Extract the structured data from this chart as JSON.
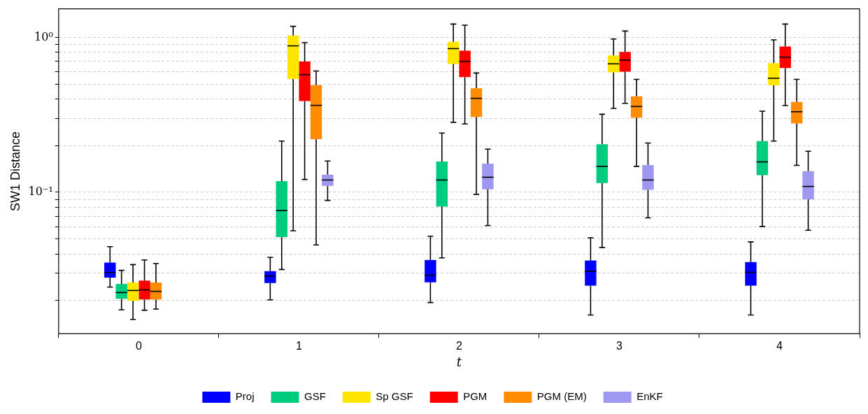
{
  "chart_data": {
    "type": "box",
    "xlabel": "t",
    "ylabel": "SW1 Distance",
    "categories": [
      "0",
      "1",
      "2",
      "3",
      "4"
    ],
    "log": "y",
    "grid": "y",
    "legend": "bottom",
    "ylim": [
      0.0122,
      1.53
    ],
    "yticks": [
      {
        "value": 0.02,
        "label": null
      },
      {
        "value": 0.03,
        "label": null
      },
      {
        "value": 0.04,
        "label": null
      },
      {
        "value": 0.05,
        "label": null
      },
      {
        "value": 0.06,
        "label": null
      },
      {
        "value": 0.07,
        "label": null
      },
      {
        "value": 0.08,
        "label": null
      },
      {
        "value": 0.09,
        "label": null
      },
      {
        "value": 0.1,
        "label": "10⁻¹"
      },
      {
        "value": 0.2,
        "label": null
      },
      {
        "value": 0.3,
        "label": null
      },
      {
        "value": 0.4,
        "label": null
      },
      {
        "value": 0.5,
        "label": null
      },
      {
        "value": 0.6,
        "label": null
      },
      {
        "value": 0.7,
        "label": null
      },
      {
        "value": 0.8,
        "label": null
      },
      {
        "value": 0.9,
        "label": null
      },
      {
        "value": 1,
        "label": "10⁰"
      }
    ],
    "series": [
      {
        "name": "Proj",
        "color": "#0000ff",
        "boxes": [
          {
            "low": 0.0244,
            "q1": 0.0281,
            "median": 0.0303,
            "q3": 0.0351,
            "high": 0.0445
          },
          {
            "low": 0.0202,
            "q1": 0.0259,
            "median": 0.0287,
            "q3": 0.0309,
            "high": 0.038
          },
          {
            "low": 0.0194,
            "q1": 0.0262,
            "median": 0.0291,
            "q3": 0.0365,
            "high": 0.052
          },
          {
            "low": 0.0161,
            "q1": 0.0249,
            "median": 0.0309,
            "q3": 0.0362,
            "high": 0.0508
          },
          {
            "low": 0.0161,
            "q1": 0.0249,
            "median": 0.0304,
            "q3": 0.0354,
            "high": 0.0478
          }
        ]
      },
      {
        "name": "GSF",
        "color": "#00cc80",
        "boxes": [
          {
            "low": 0.0174,
            "q1": 0.0205,
            "median": 0.0225,
            "q3": 0.0256,
            "high": 0.0313
          },
          {
            "low": 0.0317,
            "q1": 0.0513,
            "median": 0.0762,
            "q3": 0.118,
            "high": 0.214
          },
          {
            "low": 0.0377,
            "q1": 0.0807,
            "median": 0.12,
            "q3": 0.158,
            "high": 0.241
          },
          {
            "low": 0.044,
            "q1": 0.1146,
            "median": 0.147,
            "q3": 0.204,
            "high": 0.319
          },
          {
            "low": 0.0601,
            "q1": 0.129,
            "median": 0.157,
            "q3": 0.214,
            "high": 0.334
          }
        ]
      },
      {
        "name": "Sp GSF",
        "color": "#ffe600",
        "boxes": [
          {
            "low": 0.0151,
            "q1": 0.0199,
            "median": 0.0232,
            "q3": 0.0261,
            "high": 0.0341
          },
          {
            "low": 0.0564,
            "q1": 0.538,
            "median": 0.882,
            "q3": 1.03,
            "high": 1.18
          },
          {
            "low": 0.283,
            "q1": 0.673,
            "median": 0.847,
            "q3": 0.938,
            "high": 1.22
          },
          {
            "low": 0.348,
            "q1": 0.595,
            "median": 0.675,
            "q3": 0.765,
            "high": 0.977
          },
          {
            "low": 0.214,
            "q1": 0.491,
            "median": 0.545,
            "q3": 0.682,
            "high": 0.964
          }
        ]
      },
      {
        "name": "PGM",
        "color": "#ff0000",
        "boxes": [
          {
            "low": 0.0173,
            "q1": 0.0203,
            "median": 0.0234,
            "q3": 0.0269,
            "high": 0.0365
          },
          {
            "low": 0.121,
            "q1": 0.388,
            "median": 0.575,
            "q3": 0.698,
            "high": 0.925
          },
          {
            "low": 0.276,
            "q1": 0.554,
            "median": 0.7,
            "q3": 0.821,
            "high": 1.2
          },
          {
            "low": 0.375,
            "q1": 0.601,
            "median": 0.712,
            "q3": 0.805,
            "high": 1.1
          },
          {
            "low": 0.363,
            "q1": 0.635,
            "median": 0.745,
            "q3": 0.873,
            "high": 1.22
          }
        ]
      },
      {
        "name": "PGM (EM)",
        "color": "#ff8c00",
        "boxes": [
          {
            "low": 0.0176,
            "q1": 0.0203,
            "median": 0.0229,
            "q3": 0.0261,
            "high": 0.0347
          },
          {
            "low": 0.0457,
            "q1": 0.22,
            "median": 0.364,
            "q3": 0.492,
            "high": 0.607
          },
          {
            "low": 0.097,
            "q1": 0.306,
            "median": 0.404,
            "q3": 0.469,
            "high": 0.589
          },
          {
            "low": 0.147,
            "q1": 0.303,
            "median": 0.358,
            "q3": 0.416,
            "high": 0.536
          },
          {
            "low": 0.149,
            "q1": 0.278,
            "median": 0.331,
            "q3": 0.383,
            "high": 0.536
          }
        ]
      },
      {
        "name": "EnKF",
        "color": "#9e98f0",
        "boxes": [
          null,
          {
            "low": 0.0885,
            "q1": 0.11,
            "median": 0.12,
            "q3": 0.13,
            "high": 0.159
          },
          {
            "low": 0.061,
            "q1": 0.1045,
            "median": 0.125,
            "q3": 0.153,
            "high": 0.19
          },
          {
            "low": 0.0684,
            "q1": 0.1035,
            "median": 0.12,
            "q3": 0.15,
            "high": 0.208
          },
          {
            "low": 0.0568,
            "q1": 0.09,
            "median": 0.109,
            "q3": 0.137,
            "high": 0.184
          }
        ]
      }
    ]
  }
}
